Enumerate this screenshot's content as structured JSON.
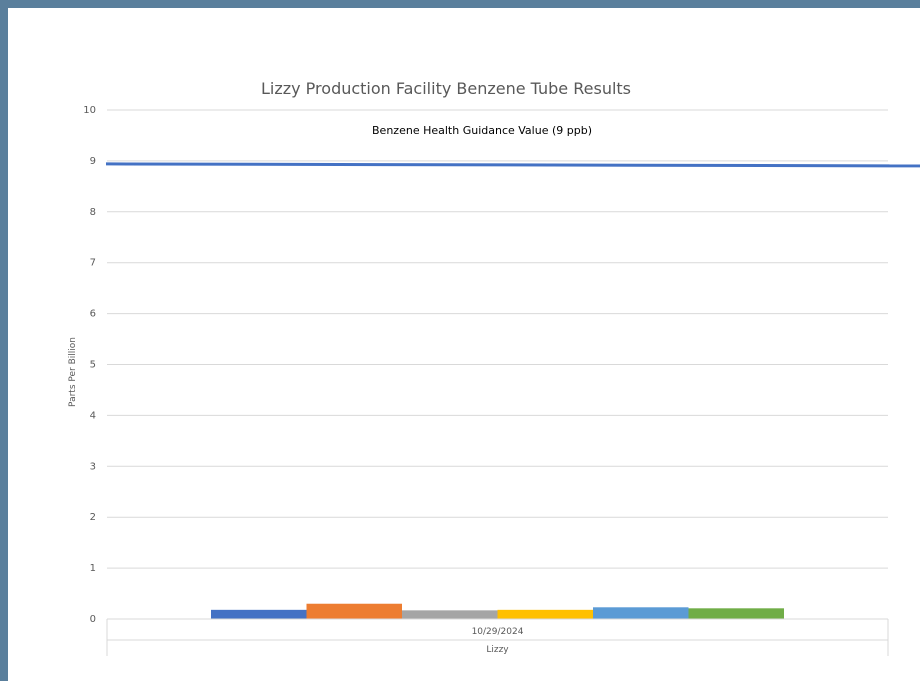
{
  "chart_data": {
    "type": "bar",
    "title": "Lizzy Production Facility Benzene Tube Results",
    "ylabel": "Parts Per Billion",
    "ylim": [
      0,
      10
    ],
    "yticks": [
      "0",
      "1",
      "2",
      "3",
      "4",
      "5",
      "6",
      "7",
      "8",
      "9",
      "10"
    ],
    "categories": [
      "10/29/2024"
    ],
    "group_label": "Lizzy",
    "grid": true,
    "series": [
      {
        "values": [
          0.18
        ],
        "color": "#4472c4"
      },
      {
        "values": [
          0.3
        ],
        "color": "#ed7d31"
      },
      {
        "values": [
          0.17
        ],
        "color": "#a5a5a5"
      },
      {
        "values": [
          0.18
        ],
        "color": "#ffc000"
      },
      {
        "values": [
          0.23
        ],
        "color": "#5b9bd5"
      },
      {
        "values": [
          0.21
        ],
        "color": "#70ad47"
      }
    ],
    "reference_line": {
      "label": "Benzene Health Guidance Value (9 ppb)",
      "value": 9,
      "color": "#4472c4"
    }
  }
}
